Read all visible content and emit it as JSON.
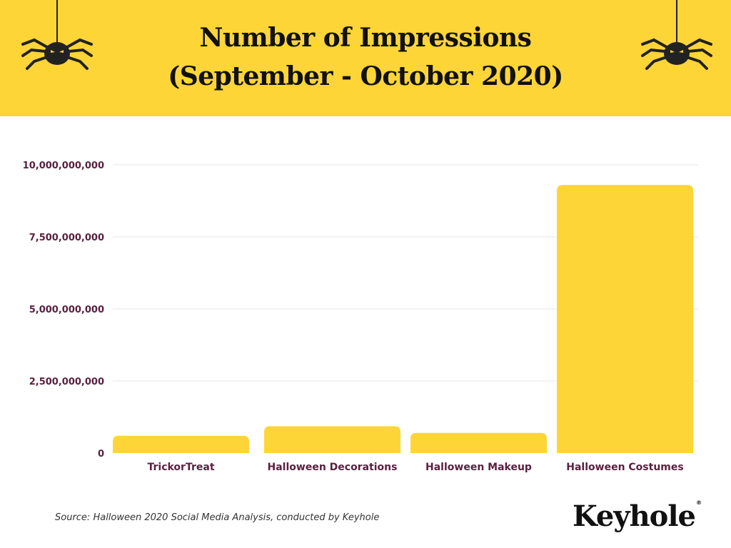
{
  "header": {
    "title_line1": "Number of Impressions",
    "title_line2": "(September - October 2020)",
    "background": "#FED537"
  },
  "decorations": [
    "spider-icon",
    "spider-icon"
  ],
  "chart_data": {
    "type": "bar",
    "title": "Number of Impressions (September - October 2020)",
    "xlabel": "",
    "ylabel": "",
    "categories": [
      "TrickorTreat",
      "Halloween Decorations",
      "Halloween Makeup",
      "Halloween Costumes"
    ],
    "values": [
      600000000,
      930000000,
      700000000,
      9300000000
    ],
    "ylim": [
      0,
      10000000000
    ],
    "yticks": [
      0,
      2500000000,
      5000000000,
      7500000000,
      10000000000
    ],
    "ytick_labels": [
      "0",
      "2,500,000,000",
      "5,000,000,000",
      "7,500,000,000",
      "10,000,000,000"
    ],
    "grid": true,
    "legend": "none",
    "bar_color": "#FED537",
    "label_color": "#5A2040"
  },
  "footer": {
    "source": "Source: Halloween 2020 Social Media Analysis, conducted by Keyhole",
    "brand": "Keyhole",
    "brand_mark": "®"
  }
}
